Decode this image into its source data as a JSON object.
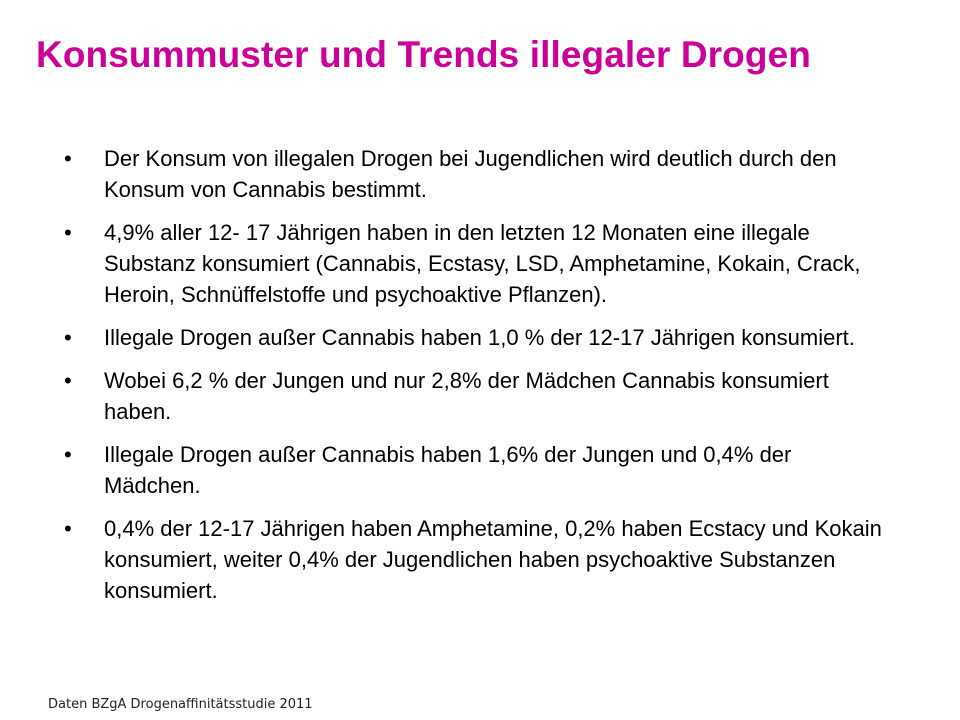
{
  "slide": {
    "title": "Konsummuster und Trends illegaler Drogen",
    "bullet_glyph": "•",
    "bullets": [
      {
        "text": "Der Konsum von illegalen Drogen bei Jugendlichen wird deutlich durch den Konsum von Cannabis bestimmt."
      },
      {
        "text": "4,9% aller 12- 17 Jährigen haben in den letzten 12 Monaten eine illegale Substanz konsumiert (Cannabis, Ecstasy, LSD, Amphetamine, Kokain, Crack, Heroin, Schnüffelstoffe und psychoaktive Pflanzen)."
      },
      {
        "text": "Illegale Drogen außer Cannabis haben 1,0 % der 12-17 Jährigen konsumiert."
      },
      {
        "text": "Wobei  6,2 % der Jungen und nur 2,8% der Mädchen Cannabis konsumiert haben."
      },
      {
        "text": "Illegale Drogen außer Cannabis haben 1,6% der Jungen und 0,4% der Mädchen."
      },
      {
        "text": "0,4% der 12-17 Jährigen haben Amphetamine, 0,2% haben Ecstacy und Kokain konsumiert, weiter 0,4% der Jugendlichen haben psychoaktive Substanzen konsumiert."
      }
    ],
    "source": "Daten BZgA Drogenaffinitätsstudie 2011",
    "colors": {
      "title": "#cc0099",
      "text": "#000000",
      "background": "#ffffff"
    }
  }
}
